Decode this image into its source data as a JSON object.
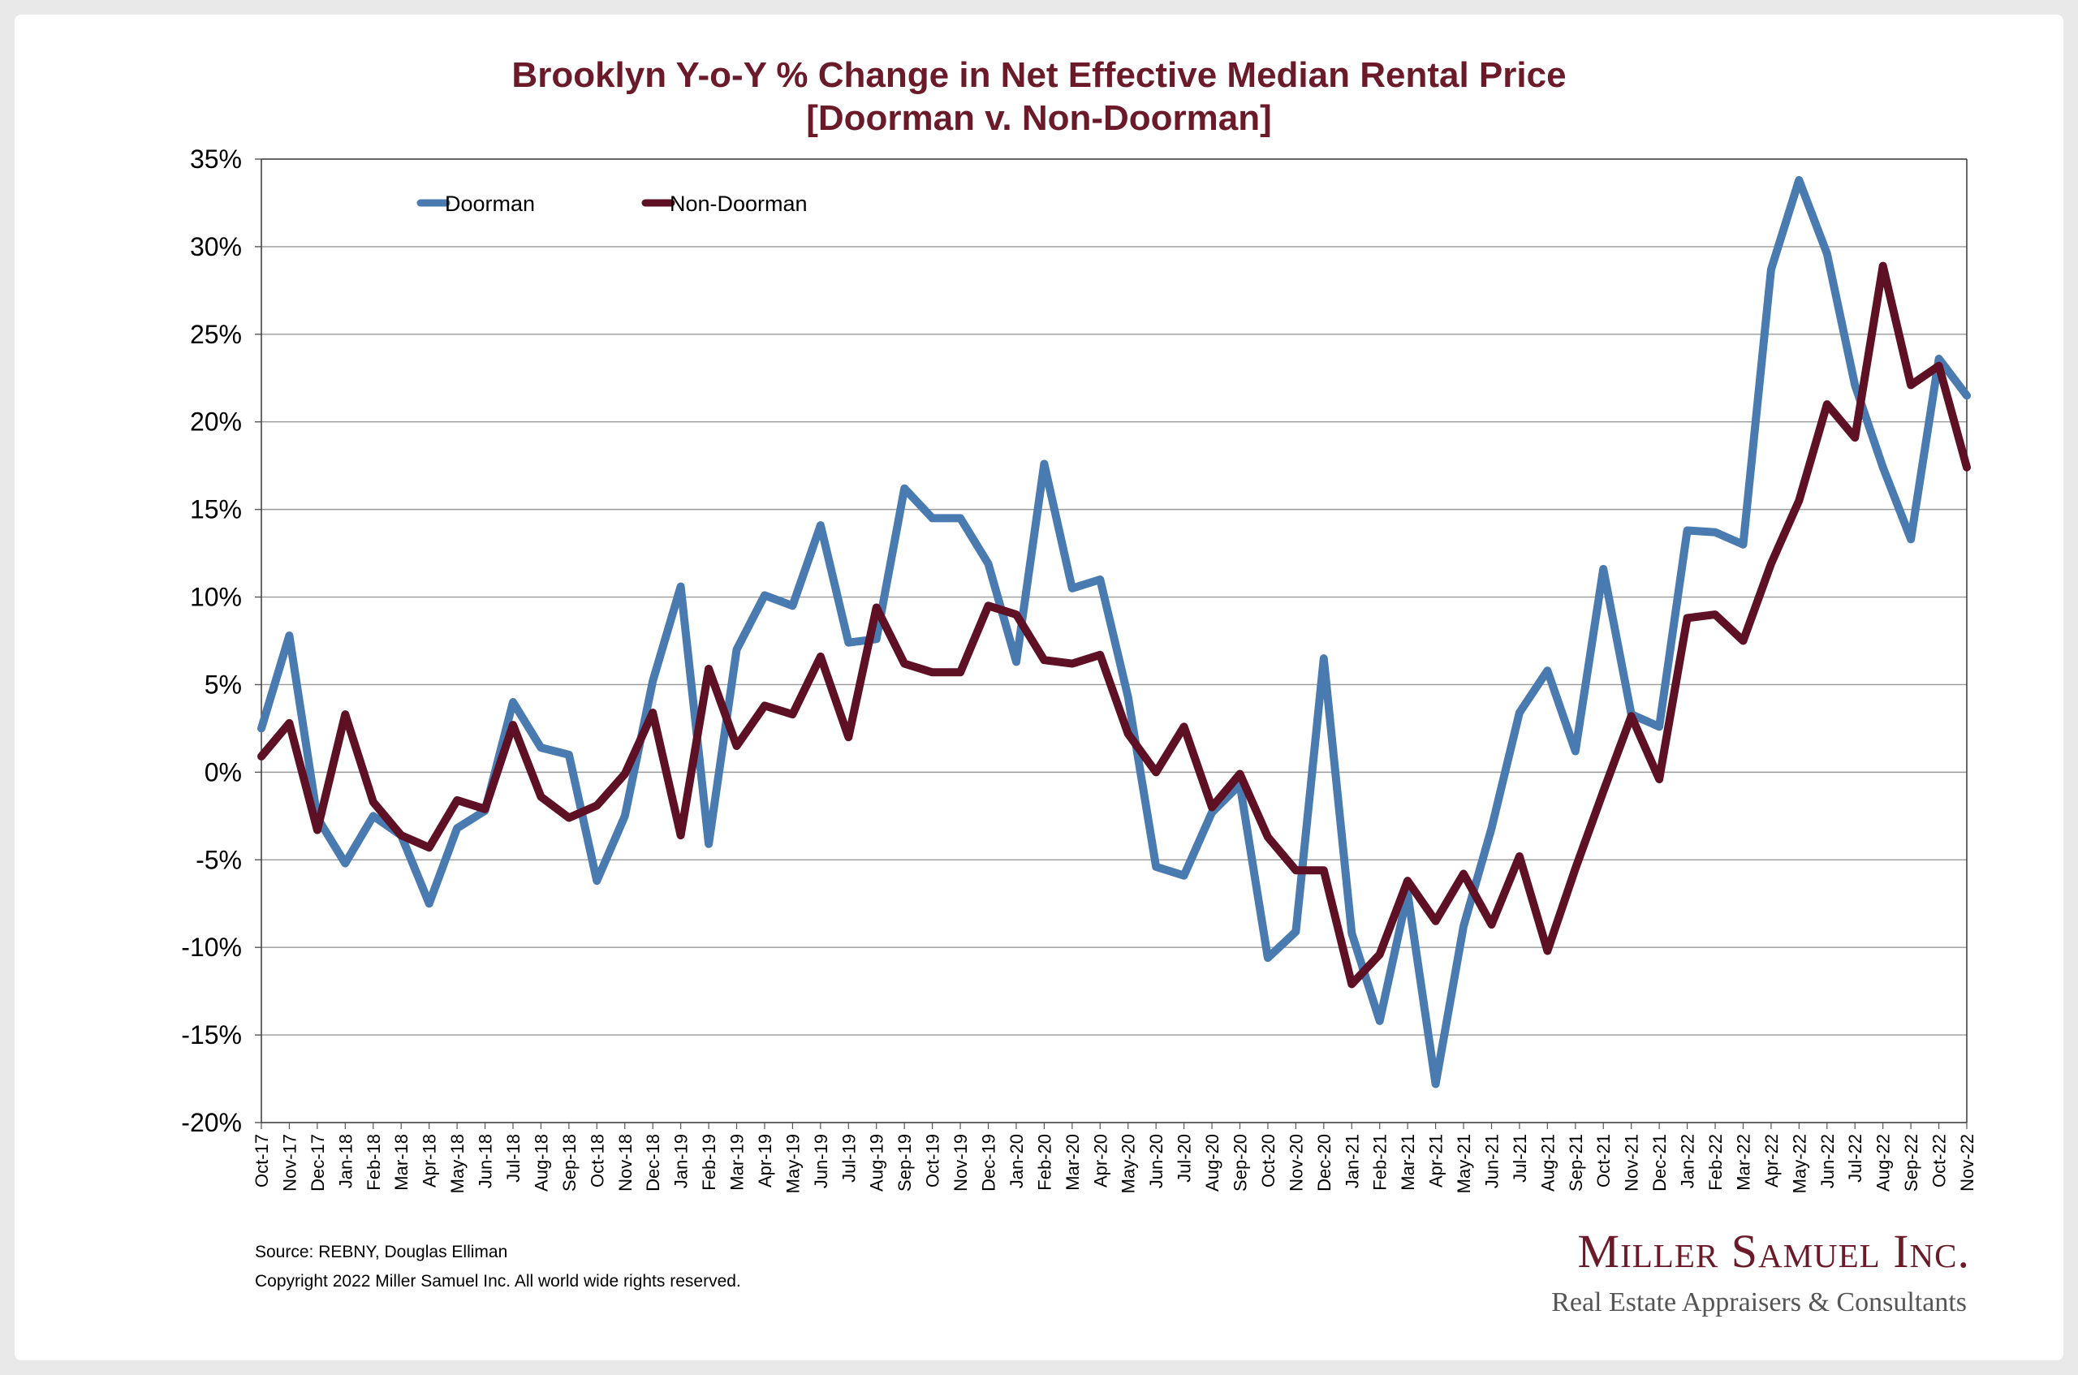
{
  "footer": {
    "source": "Source: REBNY, Douglas Elliman",
    "copyright": "Copyright 2022 Miller Samuel Inc.  All world wide rights reserved."
  },
  "brand": {
    "name": "Miller Samuel Inc.",
    "tagline": "Real Estate Appraisers & Consultants"
  },
  "chart_data": {
    "type": "line",
    "title": "Brooklyn Y-o-Y % Change in Net Effective Median Rental Price",
    "subtitle": "[Doorman v. Non-Doorman]",
    "ylim": [
      -20,
      35
    ],
    "yticks": [
      35,
      30,
      25,
      20,
      15,
      10,
      5,
      0,
      -5,
      -10,
      -15,
      -20
    ],
    "ytick_labels": [
      "35%",
      "30%",
      "25%",
      "20%",
      "15%",
      "10%",
      "5%",
      "0%",
      "-5%",
      "-10%",
      "-15%",
      "-20%"
    ],
    "grid": true,
    "legend": "top-left",
    "categories": [
      "Oct-17",
      "Nov-17",
      "Dec-17",
      "Jan-18",
      "Feb-18",
      "Mar-18",
      "Apr-18",
      "May-18",
      "Jun-18",
      "Jul-18",
      "Aug-18",
      "Sep-18",
      "Oct-18",
      "Nov-18",
      "Dec-18",
      "Jan-19",
      "Feb-19",
      "Mar-19",
      "Apr-19",
      "May-19",
      "Jun-19",
      "Jul-19",
      "Aug-19",
      "Sep-19",
      "Oct-19",
      "Nov-19",
      "Dec-19",
      "Jan-20",
      "Feb-20",
      "Mar-20",
      "Apr-20",
      "May-20",
      "Jun-20",
      "Jul-20",
      "Aug-20",
      "Sep-20",
      "Oct-20",
      "Nov-20",
      "Dec-20",
      "Jan-21",
      "Feb-21",
      "Mar-21",
      "Apr-21",
      "May-21",
      "Jun-21",
      "Jul-21",
      "Aug-21",
      "Sep-21",
      "Oct-21",
      "Nov-21",
      "Dec-21",
      "Jan-22",
      "Feb-22",
      "Mar-22",
      "Apr-22",
      "May-22",
      "Jun-22",
      "Jul-22",
      "Aug-22",
      "Sep-22",
      "Oct-22",
      "Nov-22"
    ],
    "series": [
      {
        "name": "Doorman",
        "color": "#4a7bb0",
        "values": [
          2.5,
          7.8,
          -2.6,
          -5.2,
          -2.5,
          -3.6,
          -7.5,
          -3.2,
          -2.2,
          4.0,
          1.4,
          1.0,
          -6.2,
          -2.5,
          5.2,
          10.6,
          -4.1,
          7.0,
          10.1,
          9.5,
          14.1,
          7.4,
          7.6,
          16.2,
          14.5,
          14.5,
          11.9,
          6.3,
          17.6,
          10.5,
          11.0,
          4.3,
          -5.4,
          -5.9,
          -2.3,
          -0.7,
          -10.6,
          -9.1,
          6.5,
          -9.2,
          -14.2,
          -6.9,
          -17.8,
          -8.8,
          -3.2,
          3.4,
          5.8,
          1.2,
          11.6,
          3.3,
          2.6,
          13.8,
          13.7,
          13.0,
          28.7,
          33.8,
          29.6,
          22.1,
          17.4,
          13.3,
          23.6,
          21.5
        ]
      },
      {
        "name": "Non-Doorman",
        "color": "#5e1024",
        "values": [
          0.9,
          2.8,
          -3.3,
          3.3,
          -1.7,
          -3.6,
          -4.3,
          -1.6,
          -2.1,
          2.7,
          -1.4,
          -2.6,
          -1.9,
          -0.1,
          3.4,
          -3.6,
          5.9,
          1.5,
          3.8,
          3.3,
          6.6,
          2.0,
          9.4,
          6.2,
          5.7,
          5.7,
          9.5,
          9.0,
          6.4,
          6.2,
          6.7,
          2.2,
          0.0,
          2.6,
          -2.0,
          -0.1,
          -3.7,
          -5.6,
          -5.6,
          -12.1,
          -10.4,
          -6.2,
          -8.5,
          -5.8,
          -8.7,
          -4.8,
          -10.2,
          -5.5,
          -1.1,
          3.2,
          -0.4,
          8.8,
          9.0,
          7.5,
          11.9,
          15.5,
          21.0,
          19.1,
          28.9,
          22.1,
          23.2,
          17.4
        ]
      }
    ]
  }
}
